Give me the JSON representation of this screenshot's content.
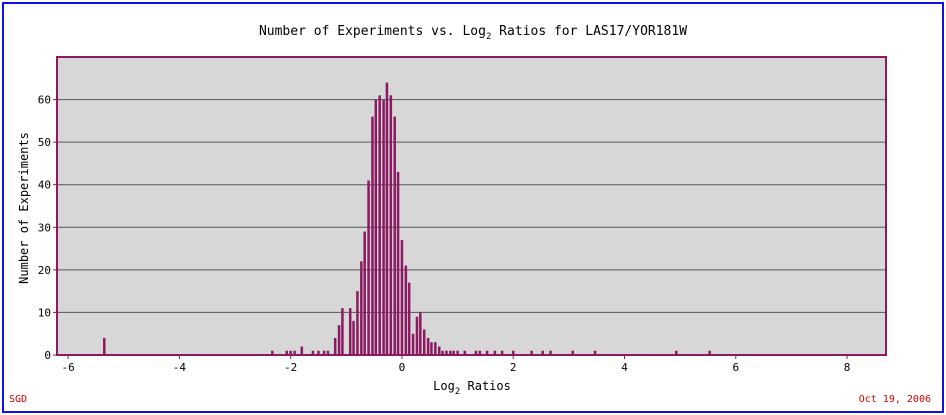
{
  "chart_data": {
    "type": "bar",
    "title": "Number of Experiments vs. Log2 Ratios for LAS17/YOR181W",
    "title_parts": {
      "prefix": "Number of Experiments vs. Log",
      "sub": "2",
      "suffix": " Ratios for LAS17/YOR181W"
    },
    "xlabel": "Log2 Ratios",
    "xlabel_parts": {
      "prefix": "Log",
      "sub": "2",
      "suffix": " Ratios"
    },
    "ylabel": "Number of Experiments",
    "xlim": [
      -6.2,
      8.7
    ],
    "ylim": [
      0,
      70
    ],
    "x_ticks": [
      -6,
      -4,
      -2,
      0,
      2,
      4,
      6,
      8
    ],
    "y_ticks": [
      0,
      10,
      20,
      30,
      40,
      50,
      60
    ],
    "grid": true,
    "legend": "none",
    "colors": {
      "bar": "#8b1a62",
      "plot_bg": "#d7d7d7",
      "frame": "#1010ee",
      "axes": "#8b1a62",
      "footer": "#cc0000"
    },
    "x": [
      -5.35,
      -2.33,
      -2.07,
      -2.0,
      -1.93,
      -1.8,
      -1.6,
      -1.5,
      -1.4,
      -1.33,
      -1.2,
      -1.13,
      -1.07,
      -0.93,
      -0.87,
      -0.8,
      -0.73,
      -0.67,
      -0.6,
      -0.53,
      -0.47,
      -0.4,
      -0.33,
      -0.27,
      -0.2,
      -0.13,
      -0.07,
      0.0,
      0.07,
      0.13,
      0.2,
      0.27,
      0.33,
      0.4,
      0.47,
      0.53,
      0.6,
      0.67,
      0.73,
      0.8,
      0.87,
      0.93,
      1.0,
      1.13,
      1.33,
      1.4,
      1.53,
      1.67,
      1.8,
      2.0,
      2.33,
      2.53,
      2.67,
      3.07,
      3.47,
      4.93,
      5.53
    ],
    "values": [
      4,
      1,
      1,
      1,
      1,
      2,
      1,
      1,
      1,
      1,
      4,
      7,
      11,
      11,
      8,
      15,
      22,
      29,
      41,
      56,
      60,
      61,
      60,
      64,
      61,
      56,
      43,
      27,
      21,
      17,
      5,
      9,
      10,
      6,
      4,
      3,
      3,
      2,
      1,
      1,
      1,
      1,
      1,
      1,
      1,
      1,
      1,
      1,
      1,
      1,
      1,
      1,
      1,
      1,
      1,
      1,
      1
    ]
  },
  "footer": {
    "left": "SGD",
    "right": "Oct 19, 2006"
  }
}
